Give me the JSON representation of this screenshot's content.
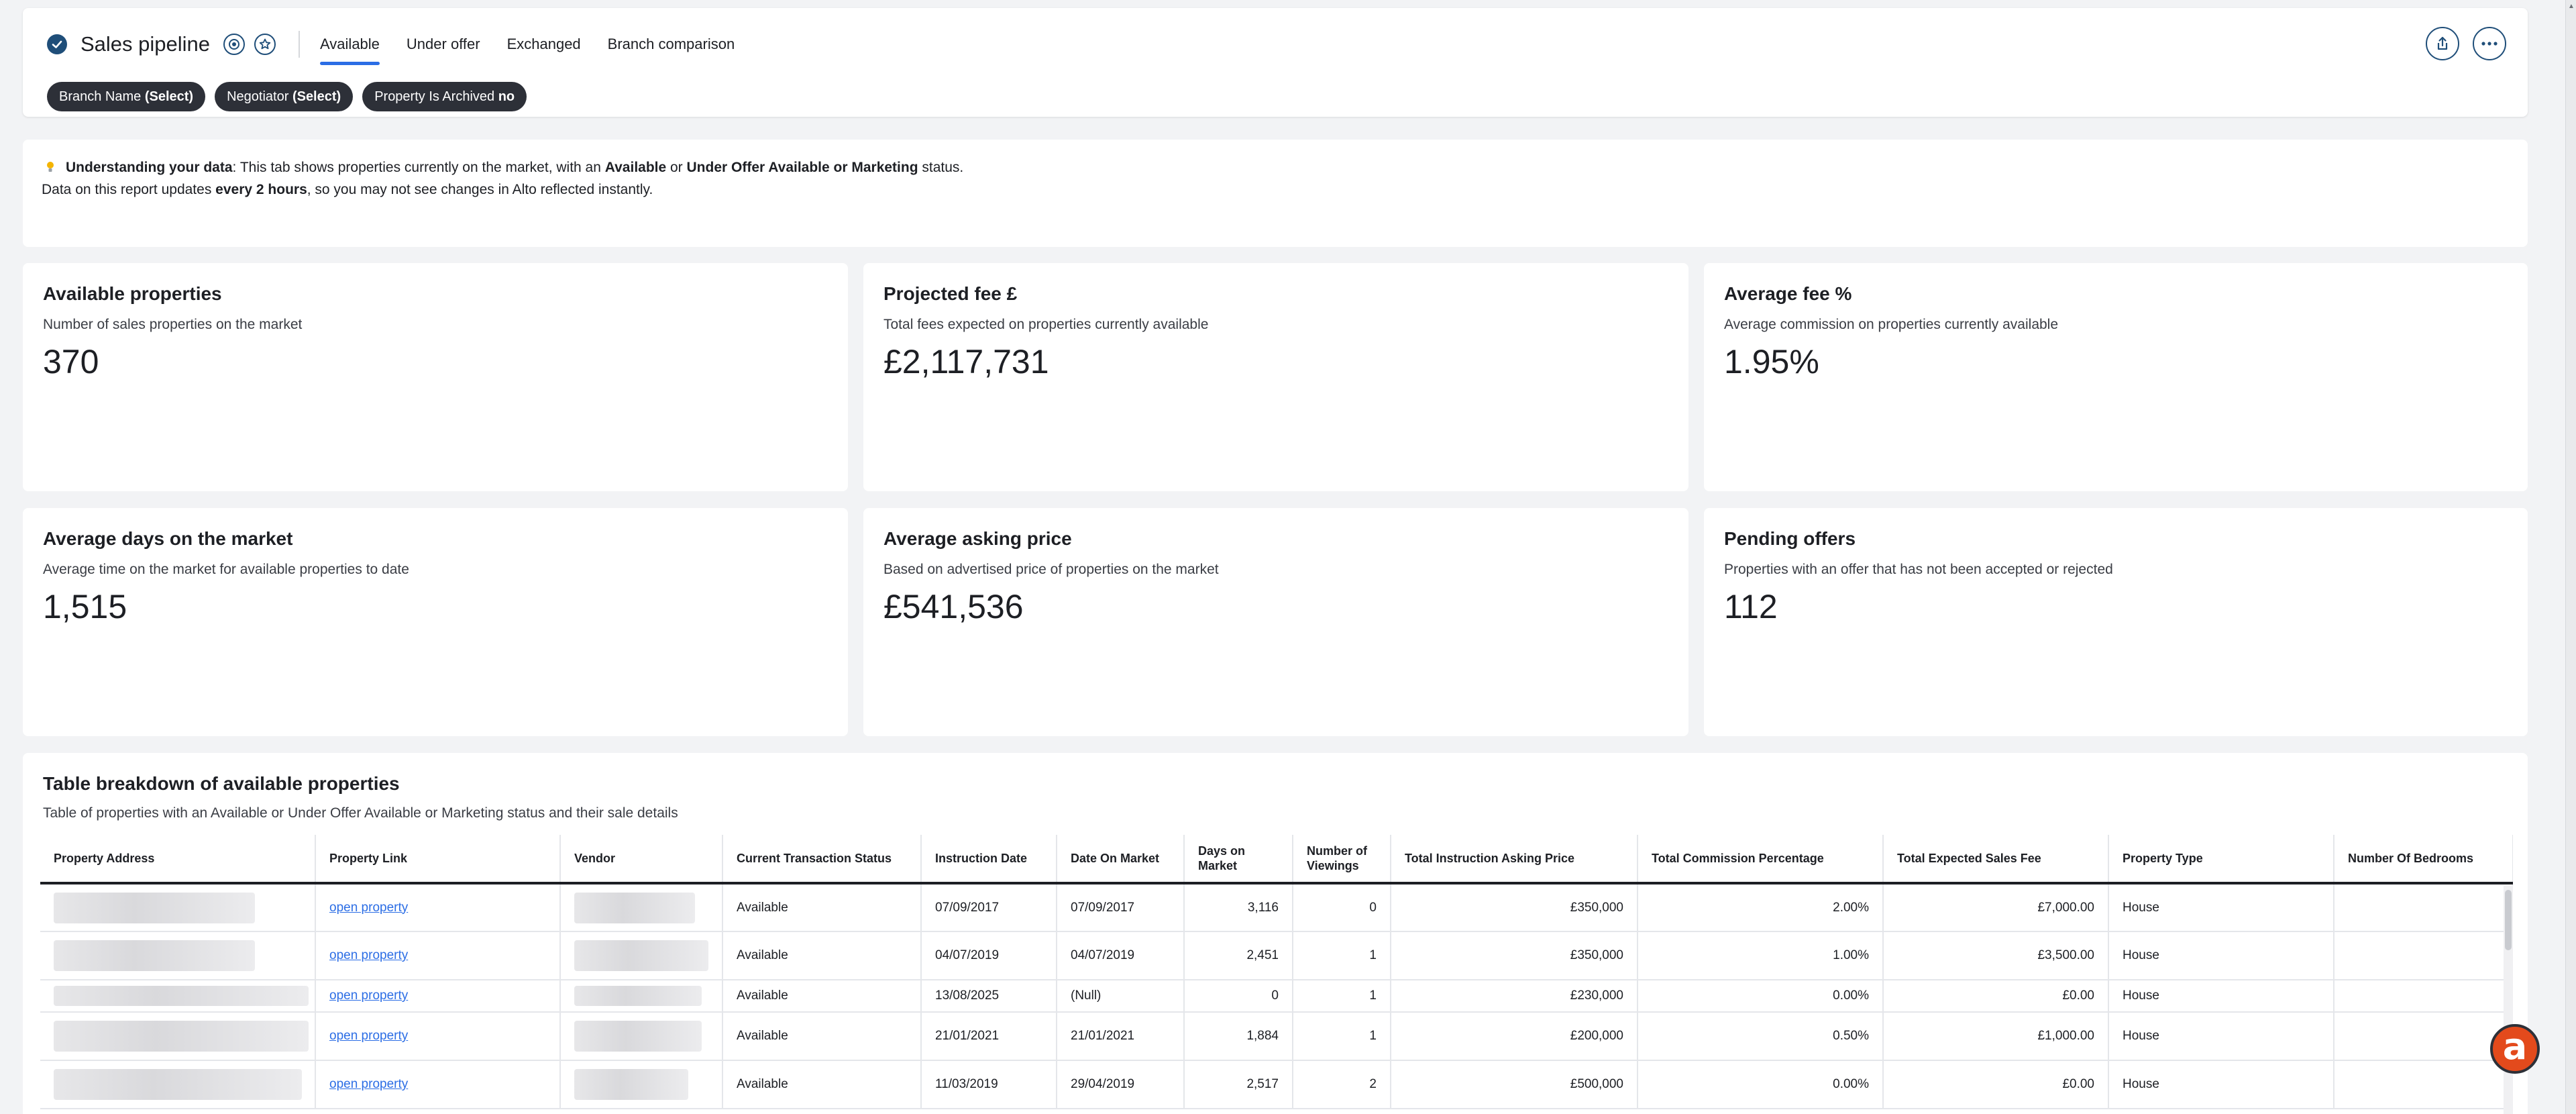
{
  "header": {
    "title": "Sales pipeline",
    "tabs": [
      {
        "label": "Available",
        "active": true
      },
      {
        "label": "Under offer",
        "active": false
      },
      {
        "label": "Exchanged",
        "active": false
      },
      {
        "label": "Branch comparison",
        "active": false
      }
    ],
    "filters": [
      {
        "name": "Branch Name",
        "value": "(Select)"
      },
      {
        "name": "Negotiator",
        "value": "(Select)"
      },
      {
        "name": "Property Is Archived",
        "value": "no"
      }
    ]
  },
  "info": {
    "heading": "Understanding your data",
    "line1_a": ": This tab shows properties currently on the market, with an ",
    "line1_b": "Available",
    "line1_c": " or ",
    "line1_d": "Under Offer Available or Marketing",
    "line1_e": " status.",
    "line2_a": "Data on this report updates ",
    "line2_b": "every 2 hours",
    "line2_c": ", so you may not see changes in Alto reflected instantly."
  },
  "kpis": [
    {
      "title": "Available properties",
      "subtitle": "Number of sales properties on the market",
      "value": "370"
    },
    {
      "title": "Projected fee £",
      "subtitle": "Total fees expected on properties currently available",
      "value": "£2,117,731"
    },
    {
      "title": "Average fee %",
      "subtitle": "Average commission on properties currently available",
      "value": "1.95%"
    },
    {
      "title": "Average days on the market",
      "subtitle": "Average time on the market for available properties to date",
      "value": "1,515"
    },
    {
      "title": "Average asking price",
      "subtitle": "Based on advertised price of properties on the market",
      "value": "£541,536"
    },
    {
      "title": "Pending offers",
      "subtitle": "Properties with an offer that has not been accepted or rejected",
      "value": "112"
    }
  ],
  "table": {
    "title": "Table breakdown of available properties",
    "subtitle": "Table of properties with an Available or Under Offer Available or Marketing status and their sale details",
    "columns": [
      "Property Address",
      "Property Link",
      "Vendor",
      "Current Transaction Status",
      "Instruction Date",
      "Date On Market",
      "Days on Market",
      "Number of Viewings",
      "Total Instruction Asking Price",
      "Total Commission Percentage",
      "Total Expected Sales Fee",
      "Property Type",
      "Number Of Bedrooms"
    ],
    "rows": [
      {
        "link": "open property",
        "status": "Available",
        "instruction_date": "07/09/2017",
        "date_on_market": "07/09/2017",
        "days": "3,116",
        "viewings": "0",
        "asking": "£350,000",
        "commission": "2.00%",
        "fee": "£7,000.00",
        "type": "House",
        "bedrooms": ""
      },
      {
        "link": "open property",
        "status": "Available",
        "instruction_date": "04/07/2019",
        "date_on_market": "04/07/2019",
        "days": "2,451",
        "viewings": "1",
        "asking": "£350,000",
        "commission": "1.00%",
        "fee": "£3,500.00",
        "type": "House",
        "bedrooms": ""
      },
      {
        "link": "open property",
        "status": "Available",
        "instruction_date": "13/08/2025",
        "date_on_market": "(Null)",
        "days": "0",
        "viewings": "1",
        "asking": "£230,000",
        "commission": "0.00%",
        "fee": "£0.00",
        "type": "House",
        "bedrooms": ""
      },
      {
        "link": "open property",
        "status": "Available",
        "instruction_date": "21/01/2021",
        "date_on_market": "21/01/2021",
        "days": "1,884",
        "viewings": "1",
        "asking": "£200,000",
        "commission": "0.50%",
        "fee": "£1,000.00",
        "type": "House",
        "bedrooms": ""
      },
      {
        "link": "open property",
        "status": "Available",
        "instruction_date": "11/03/2019",
        "date_on_market": "29/04/2019",
        "days": "2,517",
        "viewings": "2",
        "asking": "£500,000",
        "commission": "0.00%",
        "fee": "£0.00",
        "type": "House",
        "bedrooms": ""
      }
    ]
  },
  "help_button": {
    "label": "a"
  },
  "colors": {
    "accent": "#2b6de5",
    "brand_dark": "#1f4e79",
    "chip_bg": "#2d3038",
    "help_bg": "#e34a1c"
  }
}
